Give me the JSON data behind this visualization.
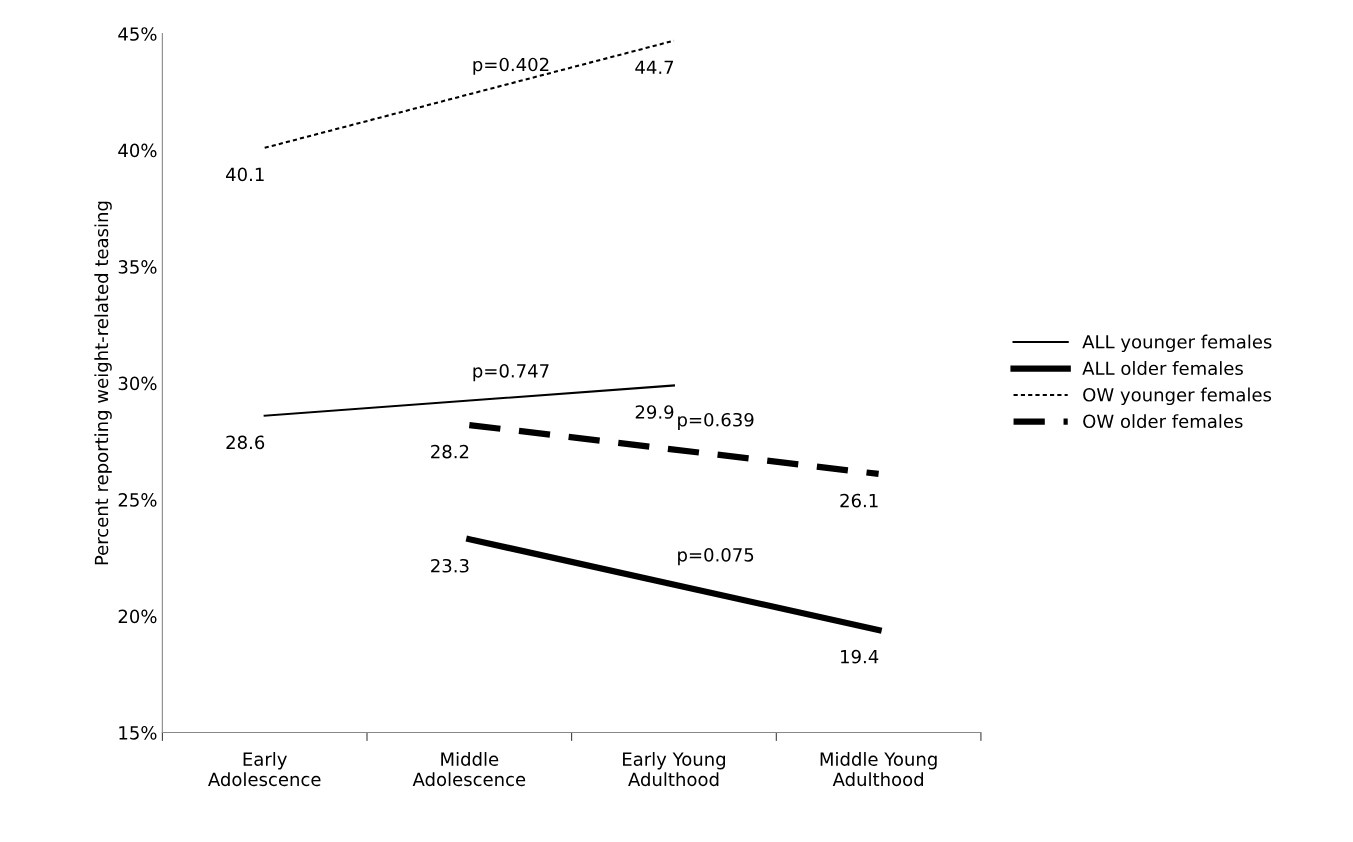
{
  "chart_data": {
    "type": "line",
    "ylabel": "Percent reporting weight-related teasing",
    "categories": [
      "Early\nAdolescence",
      "Middle\nAdolescence",
      "Early Young\nAdulthood",
      "Middle Young\nAdulthood"
    ],
    "series": [
      {
        "name": "ALL younger females",
        "color": "#000000",
        "line_style": "solid",
        "values": [
          28.6,
          null,
          29.9,
          null
        ]
      },
      {
        "name": "ALL older females",
        "color": "#000000",
        "line_style": "solid",
        "values": [
          null,
          23.3,
          null,
          19.4
        ]
      },
      {
        "name": "OW younger females",
        "color": "#000000",
        "line_style": "dotted",
        "values": [
          40.1,
          null,
          44.7,
          null
        ]
      },
      {
        "name": "OW older females",
        "color": "#000000",
        "line_style": "dashed",
        "values": [
          null,
          28.2,
          null,
          26.1
        ]
      }
    ],
    "annotations": [
      "p=0.747",
      "p=0.075",
      "p=0.402",
      "p=0.639"
    ],
    "ylim": [
      15,
      45
    ],
    "yticks": [
      {
        "value": 15,
        "label": "15%"
      },
      {
        "value": 20,
        "label": "20%"
      },
      {
        "value": 25,
        "label": "25%"
      },
      {
        "value": 30,
        "label": "30%"
      },
      {
        "value": 35,
        "label": "35%"
      },
      {
        "value": 40,
        "label": "40%"
      },
      {
        "value": 45,
        "label": "45%"
      }
    ],
    "grid": false,
    "legend": "right",
    "marker": "none",
    "data_labels": true
  }
}
